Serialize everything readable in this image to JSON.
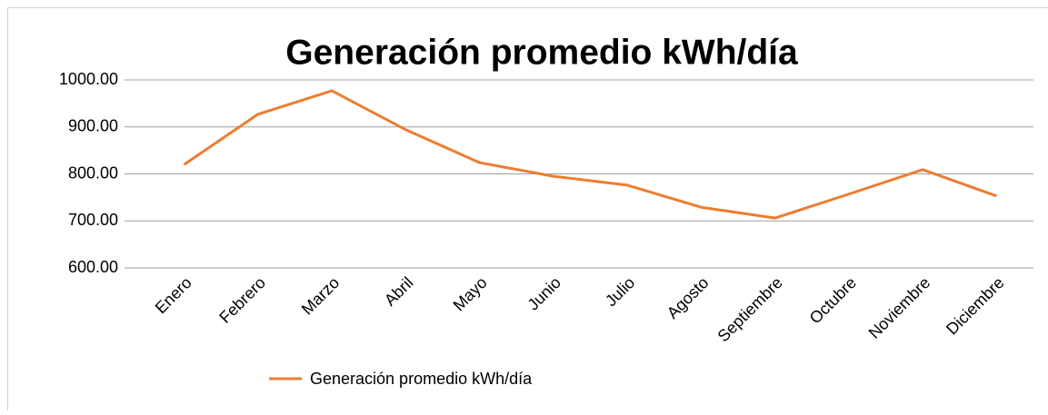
{
  "chart_data": {
    "type": "line",
    "title": "Generación promedio kWh/día",
    "categories": [
      "Enero",
      "Febrero",
      "Marzo",
      "Abril",
      "Mayo",
      "Junio",
      "Julio",
      "Agosto",
      "Septiembre",
      "Octubre",
      "Noviembre",
      "Diciembre"
    ],
    "series": [
      {
        "name": "Generación promedio kWh/día",
        "color": "#ed7d31",
        "values": [
          820,
          927,
          977,
          894,
          824,
          795,
          776,
          729,
          706,
          757,
          809,
          753
        ]
      }
    ],
    "ylim": [
      600,
      1000
    ],
    "yticks": [
      {
        "value": 600,
        "label": "600.00"
      },
      {
        "value": 700,
        "label": "700.00"
      },
      {
        "value": 800,
        "label": "800.00"
      },
      {
        "value": 900,
        "label": "900.00"
      },
      {
        "value": 1000,
        "label": "1000.00"
      }
    ],
    "grid": true,
    "legend": "bottom"
  }
}
